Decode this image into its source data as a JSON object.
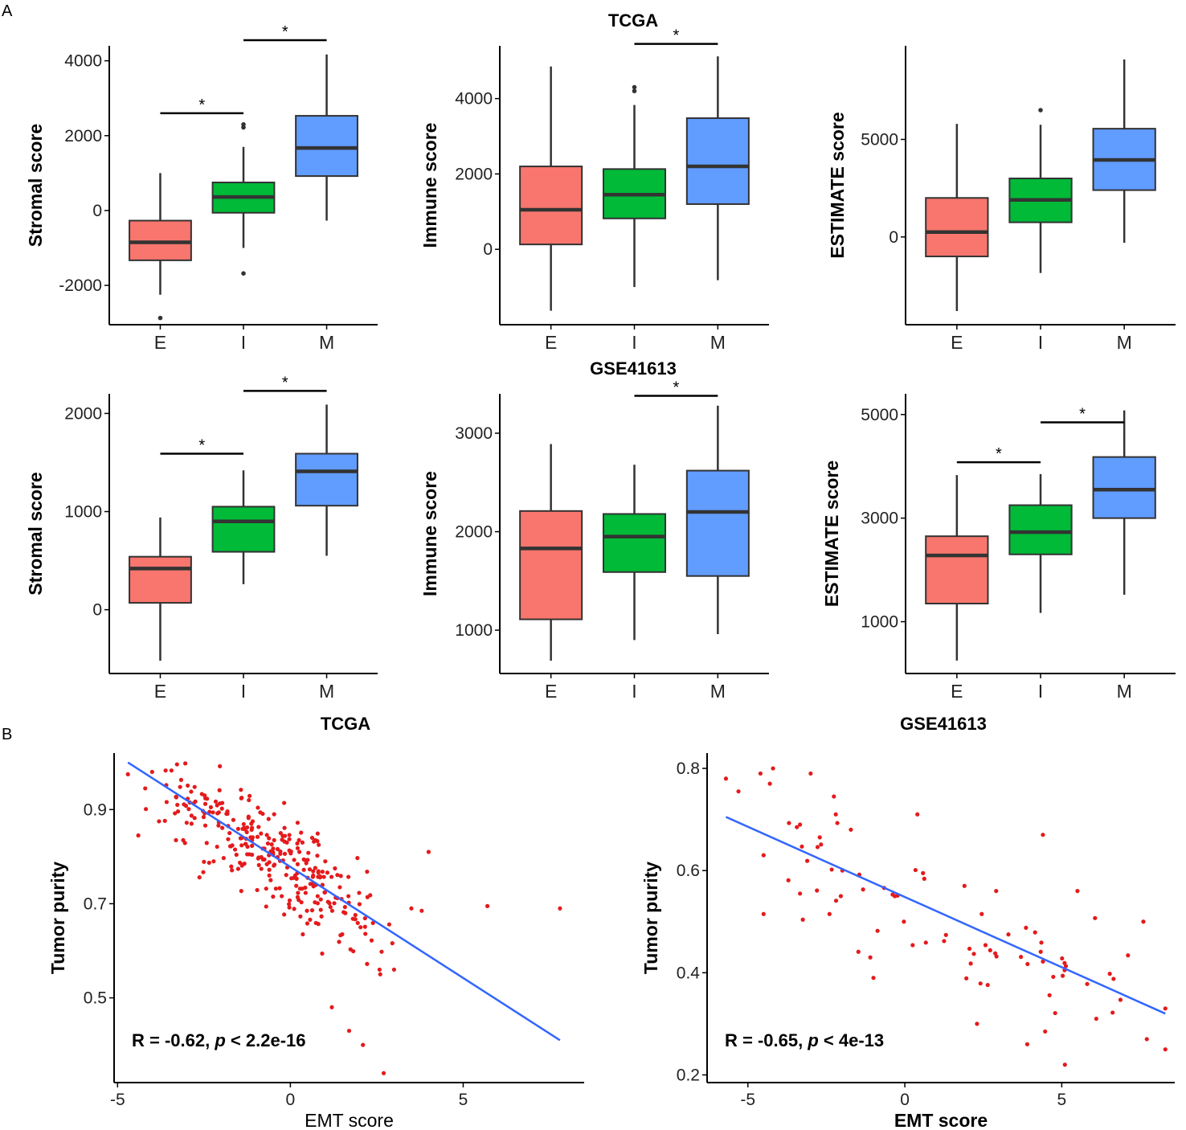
{
  "panel_labels": [
    "A",
    "B"
  ],
  "row_titles": [
    "TCGA",
    "GSE41613"
  ],
  "chart_data": [
    {
      "type": "box",
      "dataset": "TCGA",
      "title": "",
      "xlabel": "",
      "ylabel": "Stromal score",
      "categories": [
        "E",
        "I",
        "M"
      ],
      "ylim": [
        -3050,
        4400
      ],
      "yticks": [
        -2000,
        0,
        2000,
        4000
      ],
      "boxes": [
        {
          "q1": -1330,
          "median": -850,
          "q3": -270,
          "lo": -2250,
          "hi": 1000,
          "outliers": [
            -2870
          ]
        },
        {
          "q1": -60,
          "median": 360,
          "q3": 750,
          "lo": -1000,
          "hi": 1700,
          "outliers": [
            2220,
            2300,
            -1680
          ]
        },
        {
          "q1": 920,
          "median": 1670,
          "q3": 2530,
          "lo": -270,
          "hi": 4170,
          "outliers": []
        }
      ],
      "brackets": [
        {
          "from": "E",
          "to": "I",
          "label": "*",
          "y": 2600
        },
        {
          "from": "I",
          "to": "M",
          "label": "*",
          "y": 4550
        }
      ]
    },
    {
      "type": "box",
      "dataset": "TCGA",
      "title": "",
      "xlabel": "",
      "ylabel": "Immune score",
      "categories": [
        "E",
        "I",
        "M"
      ],
      "ylim": [
        -2000,
        5400
      ],
      "yticks": [
        0,
        2000,
        4000
      ],
      "boxes": [
        {
          "q1": 130,
          "median": 1050,
          "q3": 2200,
          "lo": -1630,
          "hi": 4850,
          "outliers": []
        },
        {
          "q1": 820,
          "median": 1450,
          "q3": 2130,
          "lo": -1000,
          "hi": 3830,
          "outliers": [
            4300,
            4200
          ]
        },
        {
          "q1": 1200,
          "median": 2200,
          "q3": 3480,
          "lo": -820,
          "hi": 5120,
          "outliers": []
        }
      ],
      "brackets": [
        {
          "from": "I",
          "to": "M",
          "label": "*",
          "y": 5450
        }
      ]
    },
    {
      "type": "box",
      "dataset": "TCGA",
      "title": "",
      "xlabel": "",
      "ylabel": "ESTIMATE score",
      "categories": [
        "E",
        "I",
        "M"
      ],
      "ylim": [
        -4500,
        9800
      ],
      "yticks": [
        0,
        5000
      ],
      "boxes": [
        {
          "q1": -1000,
          "median": 250,
          "q3": 2000,
          "lo": -3800,
          "hi": 5800,
          "outliers": []
        },
        {
          "q1": 750,
          "median": 1900,
          "q3": 3000,
          "lo": -1850,
          "hi": 5750,
          "outliers": [
            6500
          ]
        },
        {
          "q1": 2400,
          "median": 3950,
          "q3": 5550,
          "lo": -300,
          "hi": 9100,
          "outliers": []
        }
      ],
      "brackets": []
    },
    {
      "type": "box",
      "dataset": "GSE41613",
      "title": "",
      "xlabel": "",
      "ylabel": "Stromal score",
      "categories": [
        "E",
        "I",
        "M"
      ],
      "ylim": [
        -650,
        2200
      ],
      "yticks": [
        0,
        1000,
        2000
      ],
      "boxes": [
        {
          "q1": 70,
          "median": 420,
          "q3": 540,
          "lo": -520,
          "hi": 940,
          "outliers": []
        },
        {
          "q1": 590,
          "median": 900,
          "q3": 1050,
          "lo": 260,
          "hi": 1420,
          "outliers": []
        },
        {
          "q1": 1060,
          "median": 1410,
          "q3": 1590,
          "lo": 550,
          "hi": 2090,
          "outliers": []
        }
      ],
      "brackets": [
        {
          "from": "E",
          "to": "I",
          "label": "*",
          "y": 1590
        },
        {
          "from": "I",
          "to": "M",
          "label": "*",
          "y": 2230
        }
      ]
    },
    {
      "type": "box",
      "dataset": "GSE41613",
      "title": "",
      "xlabel": "",
      "ylabel": "Immune score",
      "categories": [
        "E",
        "I",
        "M"
      ],
      "ylim": [
        560,
        3400
      ],
      "yticks": [
        1000,
        2000,
        3000
      ],
      "boxes": [
        {
          "q1": 1110,
          "median": 1830,
          "q3": 2210,
          "lo": 690,
          "hi": 2890,
          "outliers": []
        },
        {
          "q1": 1590,
          "median": 1950,
          "q3": 2180,
          "lo": 900,
          "hi": 2680,
          "outliers": []
        },
        {
          "q1": 1550,
          "median": 2200,
          "q3": 2620,
          "lo": 960,
          "hi": 3280,
          "outliers": []
        }
      ],
      "brackets": [
        {
          "from": "I",
          "to": "M",
          "label": "*",
          "y": 3380
        }
      ]
    },
    {
      "type": "box",
      "dataset": "GSE41613",
      "title": "",
      "xlabel": "",
      "ylabel": "ESTIMATE score",
      "categories": [
        "E",
        "I",
        "M"
      ],
      "ylim": [
        0,
        5400
      ],
      "yticks": [
        1000,
        3000,
        5000
      ],
      "boxes": [
        {
          "q1": 1350,
          "median": 2280,
          "q3": 2650,
          "lo": 250,
          "hi": 3830,
          "outliers": []
        },
        {
          "q1": 2300,
          "median": 2730,
          "q3": 3250,
          "lo": 1170,
          "hi": 3850,
          "outliers": []
        },
        {
          "q1": 3000,
          "median": 3550,
          "q3": 4180,
          "lo": 1520,
          "hi": 5080,
          "outliers": []
        }
      ],
      "brackets": [
        {
          "from": "E",
          "to": "I",
          "label": "*",
          "y": 4080
        },
        {
          "from": "I",
          "to": "M",
          "label": "*",
          "y": 4850
        }
      ]
    },
    {
      "type": "scatter",
      "dataset": "TCGA",
      "title": "TCGA",
      "xlabel": "EMT score",
      "ylabel": "Tumor purity",
      "xlim": [
        -5.1,
        8.5
      ],
      "ylim": [
        0.32,
        1.02
      ],
      "xticks": [
        -5,
        0,
        5
      ],
      "yticks": [
        0.5,
        0.7,
        0.9
      ],
      "annotation": {
        "r_text": "R = -0.62, ",
        "p_letter": "p",
        "p_text": " < 2.2e-16"
      },
      "fit": {
        "x0": -4.7,
        "y0": 1.0,
        "x1": 7.8,
        "y1": 0.41
      },
      "n_points": 320,
      "seed": 11,
      "points": [
        [
          -4.7,
          0.975
        ],
        [
          -4.0,
          0.98
        ],
        [
          -4.4,
          0.845
        ],
        [
          -3.8,
          0.875
        ],
        [
          -3.1,
          0.835
        ],
        [
          2.7,
          0.34
        ],
        [
          2.1,
          0.4
        ],
        [
          4.0,
          0.81
        ],
        [
          5.7,
          0.695
        ],
        [
          7.8,
          0.69
        ],
        [
          3.5,
          0.69
        ],
        [
          3.8,
          0.685
        ],
        [
          3.0,
          0.56
        ],
        [
          2.6,
          0.55
        ],
        [
          1.2,
          0.48
        ],
        [
          1.7,
          0.43
        ]
      ]
    },
    {
      "type": "scatter",
      "dataset": "GSE41613",
      "title": "GSE41613",
      "xlabel": "EMT score",
      "ylabel": "Tumor purity",
      "xlim": [
        -6.3,
        8.6
      ],
      "ylim": [
        0.185,
        0.83
      ],
      "xticks": [
        -5,
        0,
        5
      ],
      "yticks": [
        0.2,
        0.4,
        0.6,
        0.8
      ],
      "annotation": {
        "r_text": "R = -0.65, ",
        "p_letter": "p",
        "p_text": " < 4e-13"
      },
      "fit": {
        "x0": -5.7,
        "y0": 0.705,
        "x1": 8.3,
        "y1": 0.32
      },
      "n_points": 95,
      "seed": 29,
      "points": [
        [
          -5.7,
          0.78
        ],
        [
          -4.6,
          0.79
        ],
        [
          -4.2,
          0.8
        ],
        [
          -3.0,
          0.79
        ],
        [
          -5.3,
          0.755
        ],
        [
          -4.3,
          0.77
        ],
        [
          -4.5,
          0.63
        ],
        [
          -4.5,
          0.515
        ],
        [
          -2.2,
          0.71
        ],
        [
          -1.1,
          0.43
        ],
        [
          -1.0,
          0.39
        ],
        [
          4.4,
          0.67
        ],
        [
          5.5,
          0.56
        ],
        [
          7.6,
          0.5
        ],
        [
          8.3,
          0.33
        ],
        [
          8.3,
          0.25
        ],
        [
          5.1,
          0.22
        ],
        [
          3.9,
          0.26
        ],
        [
          2.3,
          0.3
        ],
        [
          6.1,
          0.31
        ],
        [
          0.4,
          0.71
        ]
      ]
    }
  ],
  "colors": {
    "box_fills": [
      "#f8766d",
      "#00ba38",
      "#619cff"
    ],
    "box_stroke": "#333333",
    "point": "#e41a1c",
    "fit_line": "#3366ff",
    "axis": "#000000"
  }
}
